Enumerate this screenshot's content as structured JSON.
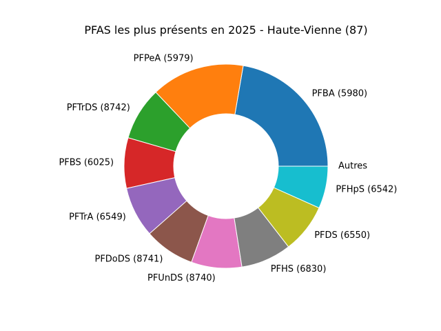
{
  "chart_data": {
    "type": "pie",
    "donut": true,
    "title": "PFAS les plus présents en 2025 - Haute-Vienne (87)",
    "start_angle_deg": 0,
    "direction": "counterclockwise",
    "slices": [
      {
        "label": "PFBA (5980)",
        "value": 22.3,
        "color": "#1f77b4"
      },
      {
        "label": "PFPeA (5979)",
        "value": 14.8,
        "color": "#ff7f0e"
      },
      {
        "label": "PFTrDS (8742)",
        "value": 8.4,
        "color": "#2ca02c"
      },
      {
        "label": "PFBS (6025)",
        "value": 8.0,
        "color": "#d62728"
      },
      {
        "label": "PFTrA (6549)",
        "value": 8.0,
        "color": "#9467bd"
      },
      {
        "label": "PFDoDS (8741)",
        "value": 8.0,
        "color": "#8c564b"
      },
      {
        "label": "PFUnDS (8740)",
        "value": 8.0,
        "color": "#e377c2"
      },
      {
        "label": "PFHS (6830)",
        "value": 8.0,
        "color": "#7f7f7f"
      },
      {
        "label": "PFDS (6550)",
        "value": 7.8,
        "color": "#bcbd22"
      },
      {
        "label": "PFHpS (6542)",
        "value": 6.7,
        "color": "#17becf"
      },
      {
        "label": "Autres",
        "value": 0.0,
        "color": "#aec7e8"
      }
    ]
  }
}
